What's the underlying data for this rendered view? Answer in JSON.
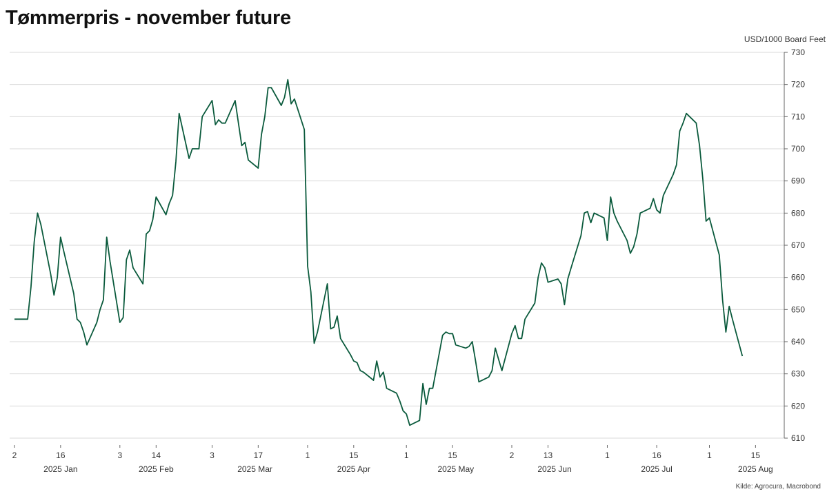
{
  "title": "Tømmerpris - november future",
  "unit_label": "USD/1000 Board Feet",
  "source": "Kilde: Agrocura, Macrobond",
  "colors": {
    "line": "#0a5a3c",
    "grid": "#d9d9d9",
    "axis": "#666666"
  },
  "chart_data": {
    "type": "line",
    "ylim": [
      610,
      730
    ],
    "y_ticks": [
      610,
      620,
      630,
      640,
      650,
      660,
      670,
      680,
      690,
      700,
      710,
      720,
      730
    ],
    "xlim": [
      "2025-01-02",
      "2025-08-21"
    ],
    "x_day_ticks": [
      {
        "label": "2",
        "date": "2025-01-02"
      },
      {
        "label": "16",
        "date": "2025-01-16"
      },
      {
        "label": "3",
        "date": "2025-02-03"
      },
      {
        "label": "14",
        "date": "2025-02-14"
      },
      {
        "label": "3",
        "date": "2025-03-03"
      },
      {
        "label": "17",
        "date": "2025-03-17"
      },
      {
        "label": "1",
        "date": "2025-04-01"
      },
      {
        "label": "15",
        "date": "2025-04-15"
      },
      {
        "label": "1",
        "date": "2025-05-01"
      },
      {
        "label": "15",
        "date": "2025-05-15"
      },
      {
        "label": "2",
        "date": "2025-06-02"
      },
      {
        "label": "13",
        "date": "2025-06-13"
      },
      {
        "label": "1",
        "date": "2025-07-01"
      },
      {
        "label": "16",
        "date": "2025-07-16"
      },
      {
        "label": "1",
        "date": "2025-08-01"
      },
      {
        "label": "15",
        "date": "2025-08-15"
      }
    ],
    "x_month_labels": [
      {
        "label": "2025 Jan",
        "date": "2025-01-16"
      },
      {
        "label": "2025 Feb",
        "date": "2025-02-14"
      },
      {
        "label": "2025 Mar",
        "date": "2025-03-16"
      },
      {
        "label": "2025 Apr",
        "date": "2025-04-15"
      },
      {
        "label": "2025 May",
        "date": "2025-05-16"
      },
      {
        "label": "2025 Jun",
        "date": "2025-06-15"
      },
      {
        "label": "2025 Jul",
        "date": "2025-07-16"
      },
      {
        "label": "2025 Aug",
        "date": "2025-08-15"
      }
    ],
    "grid": true,
    "legend": "none",
    "series": [
      {
        "points": [
          [
            "2025-01-02",
            647
          ],
          [
            "2025-01-03",
            647
          ],
          [
            "2025-01-06",
            647
          ],
          [
            "2025-01-07",
            657
          ],
          [
            "2025-01-08",
            671
          ],
          [
            "2025-01-09",
            680
          ],
          [
            "2025-01-10",
            676.5
          ],
          [
            "2025-01-13",
            661
          ],
          [
            "2025-01-14",
            654.5
          ],
          [
            "2025-01-15",
            660
          ],
          [
            "2025-01-16",
            672.5
          ],
          [
            "2025-01-17",
            668
          ],
          [
            "2025-01-20",
            655
          ],
          [
            "2025-01-21",
            647
          ],
          [
            "2025-01-22",
            646
          ],
          [
            "2025-01-23",
            643
          ],
          [
            "2025-01-24",
            639
          ],
          [
            "2025-01-27",
            646
          ],
          [
            "2025-01-28",
            650
          ],
          [
            "2025-01-29",
            653
          ],
          [
            "2025-01-30",
            672.5
          ],
          [
            "2025-01-31",
            665
          ],
          [
            "2025-02-03",
            646
          ],
          [
            "2025-02-04",
            647.5
          ],
          [
            "2025-02-05",
            665.5
          ],
          [
            "2025-02-06",
            668.5
          ],
          [
            "2025-02-07",
            663
          ],
          [
            "2025-02-10",
            658
          ],
          [
            "2025-02-11",
            673.5
          ],
          [
            "2025-02-12",
            674.5
          ],
          [
            "2025-02-13",
            678
          ],
          [
            "2025-02-14",
            685
          ],
          [
            "2025-02-17",
            679.5
          ],
          [
            "2025-02-18",
            683
          ],
          [
            "2025-02-19",
            685.5
          ],
          [
            "2025-02-20",
            696
          ],
          [
            "2025-02-21",
            711
          ],
          [
            "2025-02-24",
            697
          ],
          [
            "2025-02-25",
            700
          ],
          [
            "2025-02-26",
            700
          ],
          [
            "2025-02-27",
            700
          ],
          [
            "2025-02-28",
            710
          ],
          [
            "2025-03-03",
            715
          ],
          [
            "2025-03-04",
            707.5
          ],
          [
            "2025-03-05",
            709
          ],
          [
            "2025-03-06",
            708
          ],
          [
            "2025-03-07",
            708
          ],
          [
            "2025-03-10",
            715
          ],
          [
            "2025-03-11",
            708
          ],
          [
            "2025-03-12",
            701
          ],
          [
            "2025-03-13",
            702
          ],
          [
            "2025-03-14",
            696.5
          ],
          [
            "2025-03-17",
            694
          ],
          [
            "2025-03-18",
            704.5
          ],
          [
            "2025-03-19",
            710
          ],
          [
            "2025-03-20",
            719
          ],
          [
            "2025-03-21",
            719
          ],
          [
            "2025-03-24",
            713.5
          ],
          [
            "2025-03-25",
            716
          ],
          [
            "2025-03-26",
            721.5
          ],
          [
            "2025-03-27",
            714
          ],
          [
            "2025-03-28",
            715.5
          ],
          [
            "2025-03-31",
            706
          ],
          [
            "2025-04-01",
            663.5
          ],
          [
            "2025-04-02",
            655.5
          ],
          [
            "2025-04-03",
            639.5
          ],
          [
            "2025-04-04",
            643
          ],
          [
            "2025-04-07",
            658
          ],
          [
            "2025-04-08",
            644
          ],
          [
            "2025-04-09",
            644.5
          ],
          [
            "2025-04-10",
            648
          ],
          [
            "2025-04-11",
            641
          ],
          [
            "2025-04-14",
            636
          ],
          [
            "2025-04-15",
            634
          ],
          [
            "2025-04-16",
            633.5
          ],
          [
            "2025-04-17",
            631
          ],
          [
            "2025-04-18",
            630.5
          ],
          [
            "2025-04-21",
            628
          ],
          [
            "2025-04-22",
            634
          ],
          [
            "2025-04-23",
            629
          ],
          [
            "2025-04-24",
            630.5
          ],
          [
            "2025-04-25",
            625.5
          ],
          [
            "2025-04-28",
            624
          ],
          [
            "2025-04-29",
            621.5
          ],
          [
            "2025-04-30",
            618.5
          ],
          [
            "2025-05-01",
            617.5
          ],
          [
            "2025-05-02",
            614
          ],
          [
            "2025-05-05",
            615.5
          ],
          [
            "2025-05-06",
            627
          ],
          [
            "2025-05-07",
            620.5
          ],
          [
            "2025-05-08",
            625.5
          ],
          [
            "2025-05-09",
            625.5
          ],
          [
            "2025-05-12",
            642
          ],
          [
            "2025-05-13",
            643
          ],
          [
            "2025-05-14",
            642.5
          ],
          [
            "2025-05-15",
            642.5
          ],
          [
            "2025-05-16",
            639
          ],
          [
            "2025-05-19",
            638
          ],
          [
            "2025-05-20",
            638.5
          ],
          [
            "2025-05-21",
            640
          ],
          [
            "2025-05-22",
            634
          ],
          [
            "2025-05-23",
            627.5
          ],
          [
            "2025-05-26",
            629
          ],
          [
            "2025-05-27",
            631
          ],
          [
            "2025-05-28",
            638
          ],
          [
            "2025-05-29",
            634.5
          ],
          [
            "2025-05-30",
            631
          ],
          [
            "2025-06-02",
            642.5
          ],
          [
            "2025-06-03",
            645
          ],
          [
            "2025-06-04",
            641
          ],
          [
            "2025-06-05",
            641
          ],
          [
            "2025-06-06",
            647
          ],
          [
            "2025-06-09",
            652
          ],
          [
            "2025-06-10",
            660
          ],
          [
            "2025-06-11",
            664.5
          ],
          [
            "2025-06-12",
            663
          ],
          [
            "2025-06-13",
            658.5
          ],
          [
            "2025-06-16",
            659.5
          ],
          [
            "2025-06-17",
            658
          ],
          [
            "2025-06-18",
            651.5
          ],
          [
            "2025-06-19",
            659.5
          ],
          [
            "2025-06-20",
            663
          ],
          [
            "2025-06-23",
            673
          ],
          [
            "2025-06-24",
            680
          ],
          [
            "2025-06-25",
            680.5
          ],
          [
            "2025-06-26",
            677
          ],
          [
            "2025-06-27",
            680
          ],
          [
            "2025-06-30",
            678.5
          ],
          [
            "2025-07-01",
            671.5
          ],
          [
            "2025-07-02",
            685
          ],
          [
            "2025-07-03",
            680
          ],
          [
            "2025-07-04",
            677.5
          ],
          [
            "2025-07-07",
            671.5
          ],
          [
            "2025-07-08",
            667.5
          ],
          [
            "2025-07-09",
            669.5
          ],
          [
            "2025-07-10",
            673.5
          ],
          [
            "2025-07-11",
            680
          ],
          [
            "2025-07-14",
            681.5
          ],
          [
            "2025-07-15",
            684.5
          ],
          [
            "2025-07-16",
            681
          ],
          [
            "2025-07-17",
            680
          ],
          [
            "2025-07-18",
            685.5
          ],
          [
            "2025-07-21",
            692
          ],
          [
            "2025-07-22",
            695
          ],
          [
            "2025-07-23",
            705.5
          ],
          [
            "2025-07-24",
            708
          ],
          [
            "2025-07-25",
            711
          ],
          [
            "2025-07-28",
            708
          ],
          [
            "2025-07-29",
            701
          ],
          [
            "2025-07-30",
            690.5
          ],
          [
            "2025-07-31",
            677.5
          ],
          [
            "2025-08-01",
            678.5
          ],
          [
            "2025-08-04",
            667
          ],
          [
            "2025-08-05",
            653
          ],
          [
            "2025-08-06",
            643
          ],
          [
            "2025-08-07",
            651
          ],
          [
            "2025-08-08",
            647
          ],
          [
            "2025-08-11",
            635.5
          ]
        ]
      }
    ]
  }
}
